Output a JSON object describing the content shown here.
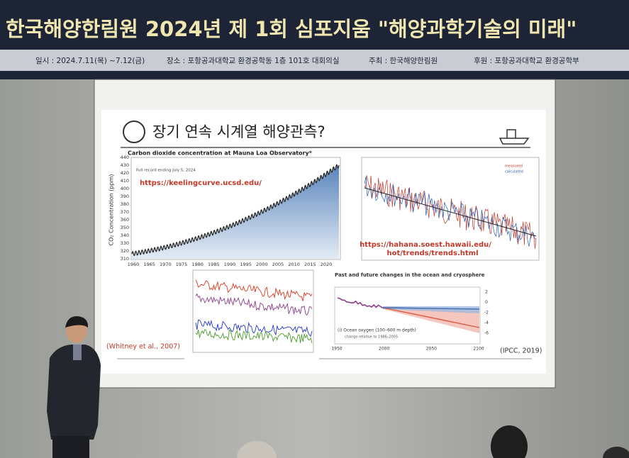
{
  "banner": {
    "title": "한국해양한림원 2024년 제 1회 심포지움 \"해양과학기술의 미래\"",
    "details": [
      "일시 : 2024.7.11(목) ~7.12(금)",
      "장소 : 포항공과대학교 환경공학동 1층 101호 대회의실",
      "주최 : 한국해양한림원",
      "후원 : 포항공과대학교 환경공학부"
    ]
  },
  "slide": {
    "title": "장기 연속 시계열 해양관측?",
    "co2_panel": {
      "title": "Carbon dioxide concentration at Mauna Loa Observatory*",
      "note": "Full record ending July 5, 2024",
      "url": "https://keelingcurve.ucsd.edu/",
      "y_label": "CO₂ Concentration (ppm)",
      "yticks": [
        310,
        320,
        330,
        340,
        350,
        360,
        370,
        380,
        390,
        400,
        410,
        420,
        430,
        440
      ],
      "xticks": [
        1960,
        1965,
        1970,
        1975,
        1980,
        1985,
        1990,
        1995,
        2000,
        2005,
        2010,
        2015,
        2020
      ]
    },
    "ph_panel": {
      "legend": [
        "measured",
        "calculated"
      ],
      "url_lines": [
        "https://hahana.soest.hawaii.edu/",
        "hot/trends/trends.html"
      ]
    },
    "oxygen_panel": {
      "citation": "(Whitney et al., 2007)"
    },
    "ipcc_panel": {
      "title": "Past and future changes in the ocean and cryosphere",
      "panel_label": "(i)  Ocean oxygen (100–600 m depth)",
      "note": "change relative to 1986–2005",
      "xticks": [
        1950,
        2000,
        2050,
        2100
      ],
      "yticks": [
        2,
        0,
        -2,
        -4,
        -6
      ],
      "citation": "(IPCC, 2019)"
    }
  }
}
